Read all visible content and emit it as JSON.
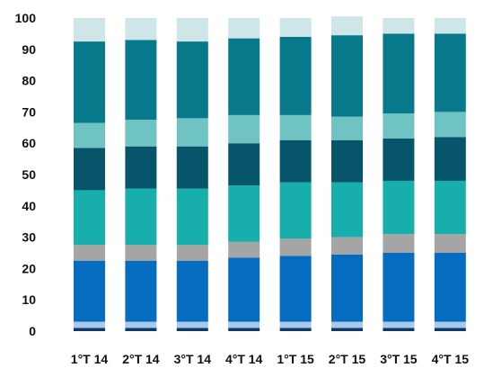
{
  "chart_data": {
    "type": "bar",
    "stacked": true,
    "title": "",
    "xlabel": "",
    "ylabel": "",
    "ylim": [
      0,
      100
    ],
    "yticks": [
      0,
      10,
      20,
      30,
      40,
      50,
      60,
      70,
      80,
      90,
      100
    ],
    "grid": false,
    "legend": "none",
    "categories": [
      "1°T 14",
      "2°T 14",
      "3°T 14",
      "4°T 14",
      "1°T 15",
      "2°T 15",
      "3°T 15",
      "4°T 15"
    ],
    "series": [
      {
        "color": "#0a3a66",
        "values": [
          1.0,
          1.0,
          1.0,
          1.0,
          1.0,
          1.0,
          1.0,
          1.0
        ]
      },
      {
        "color": "#a8c8ec",
        "values": [
          2.0,
          2.0,
          2.0,
          2.0,
          2.0,
          2.0,
          2.0,
          2.0
        ]
      },
      {
        "color": "#066cbf",
        "values": [
          19.5,
          19.5,
          19.5,
          20.5,
          21.0,
          21.5,
          22.0,
          22.0
        ]
      },
      {
        "color": "#a5a5a5",
        "values": [
          5.0,
          5.0,
          5.0,
          5.0,
          5.5,
          5.5,
          6.0,
          6.0
        ]
      },
      {
        "color": "#17aeab",
        "values": [
          17.5,
          18.0,
          18.0,
          18.0,
          18.0,
          17.5,
          17.0,
          17.0
        ]
      },
      {
        "color": "#07556a",
        "values": [
          13.5,
          13.5,
          13.5,
          13.5,
          13.5,
          13.5,
          13.5,
          14.0
        ]
      },
      {
        "color": "#6fc4c3",
        "values": [
          8.0,
          8.5,
          9.0,
          9.0,
          8.0,
          7.5,
          8.0,
          8.0
        ]
      },
      {
        "color": "#08798a",
        "values": [
          26.0,
          25.5,
          24.5,
          24.5,
          25.0,
          26.0,
          25.5,
          25.0
        ]
      },
      {
        "color": "#cfe6e8",
        "values": [
          7.5,
          7.0,
          7.5,
          6.5,
          6.0,
          6.0,
          5.0,
          5.0
        ]
      }
    ]
  }
}
